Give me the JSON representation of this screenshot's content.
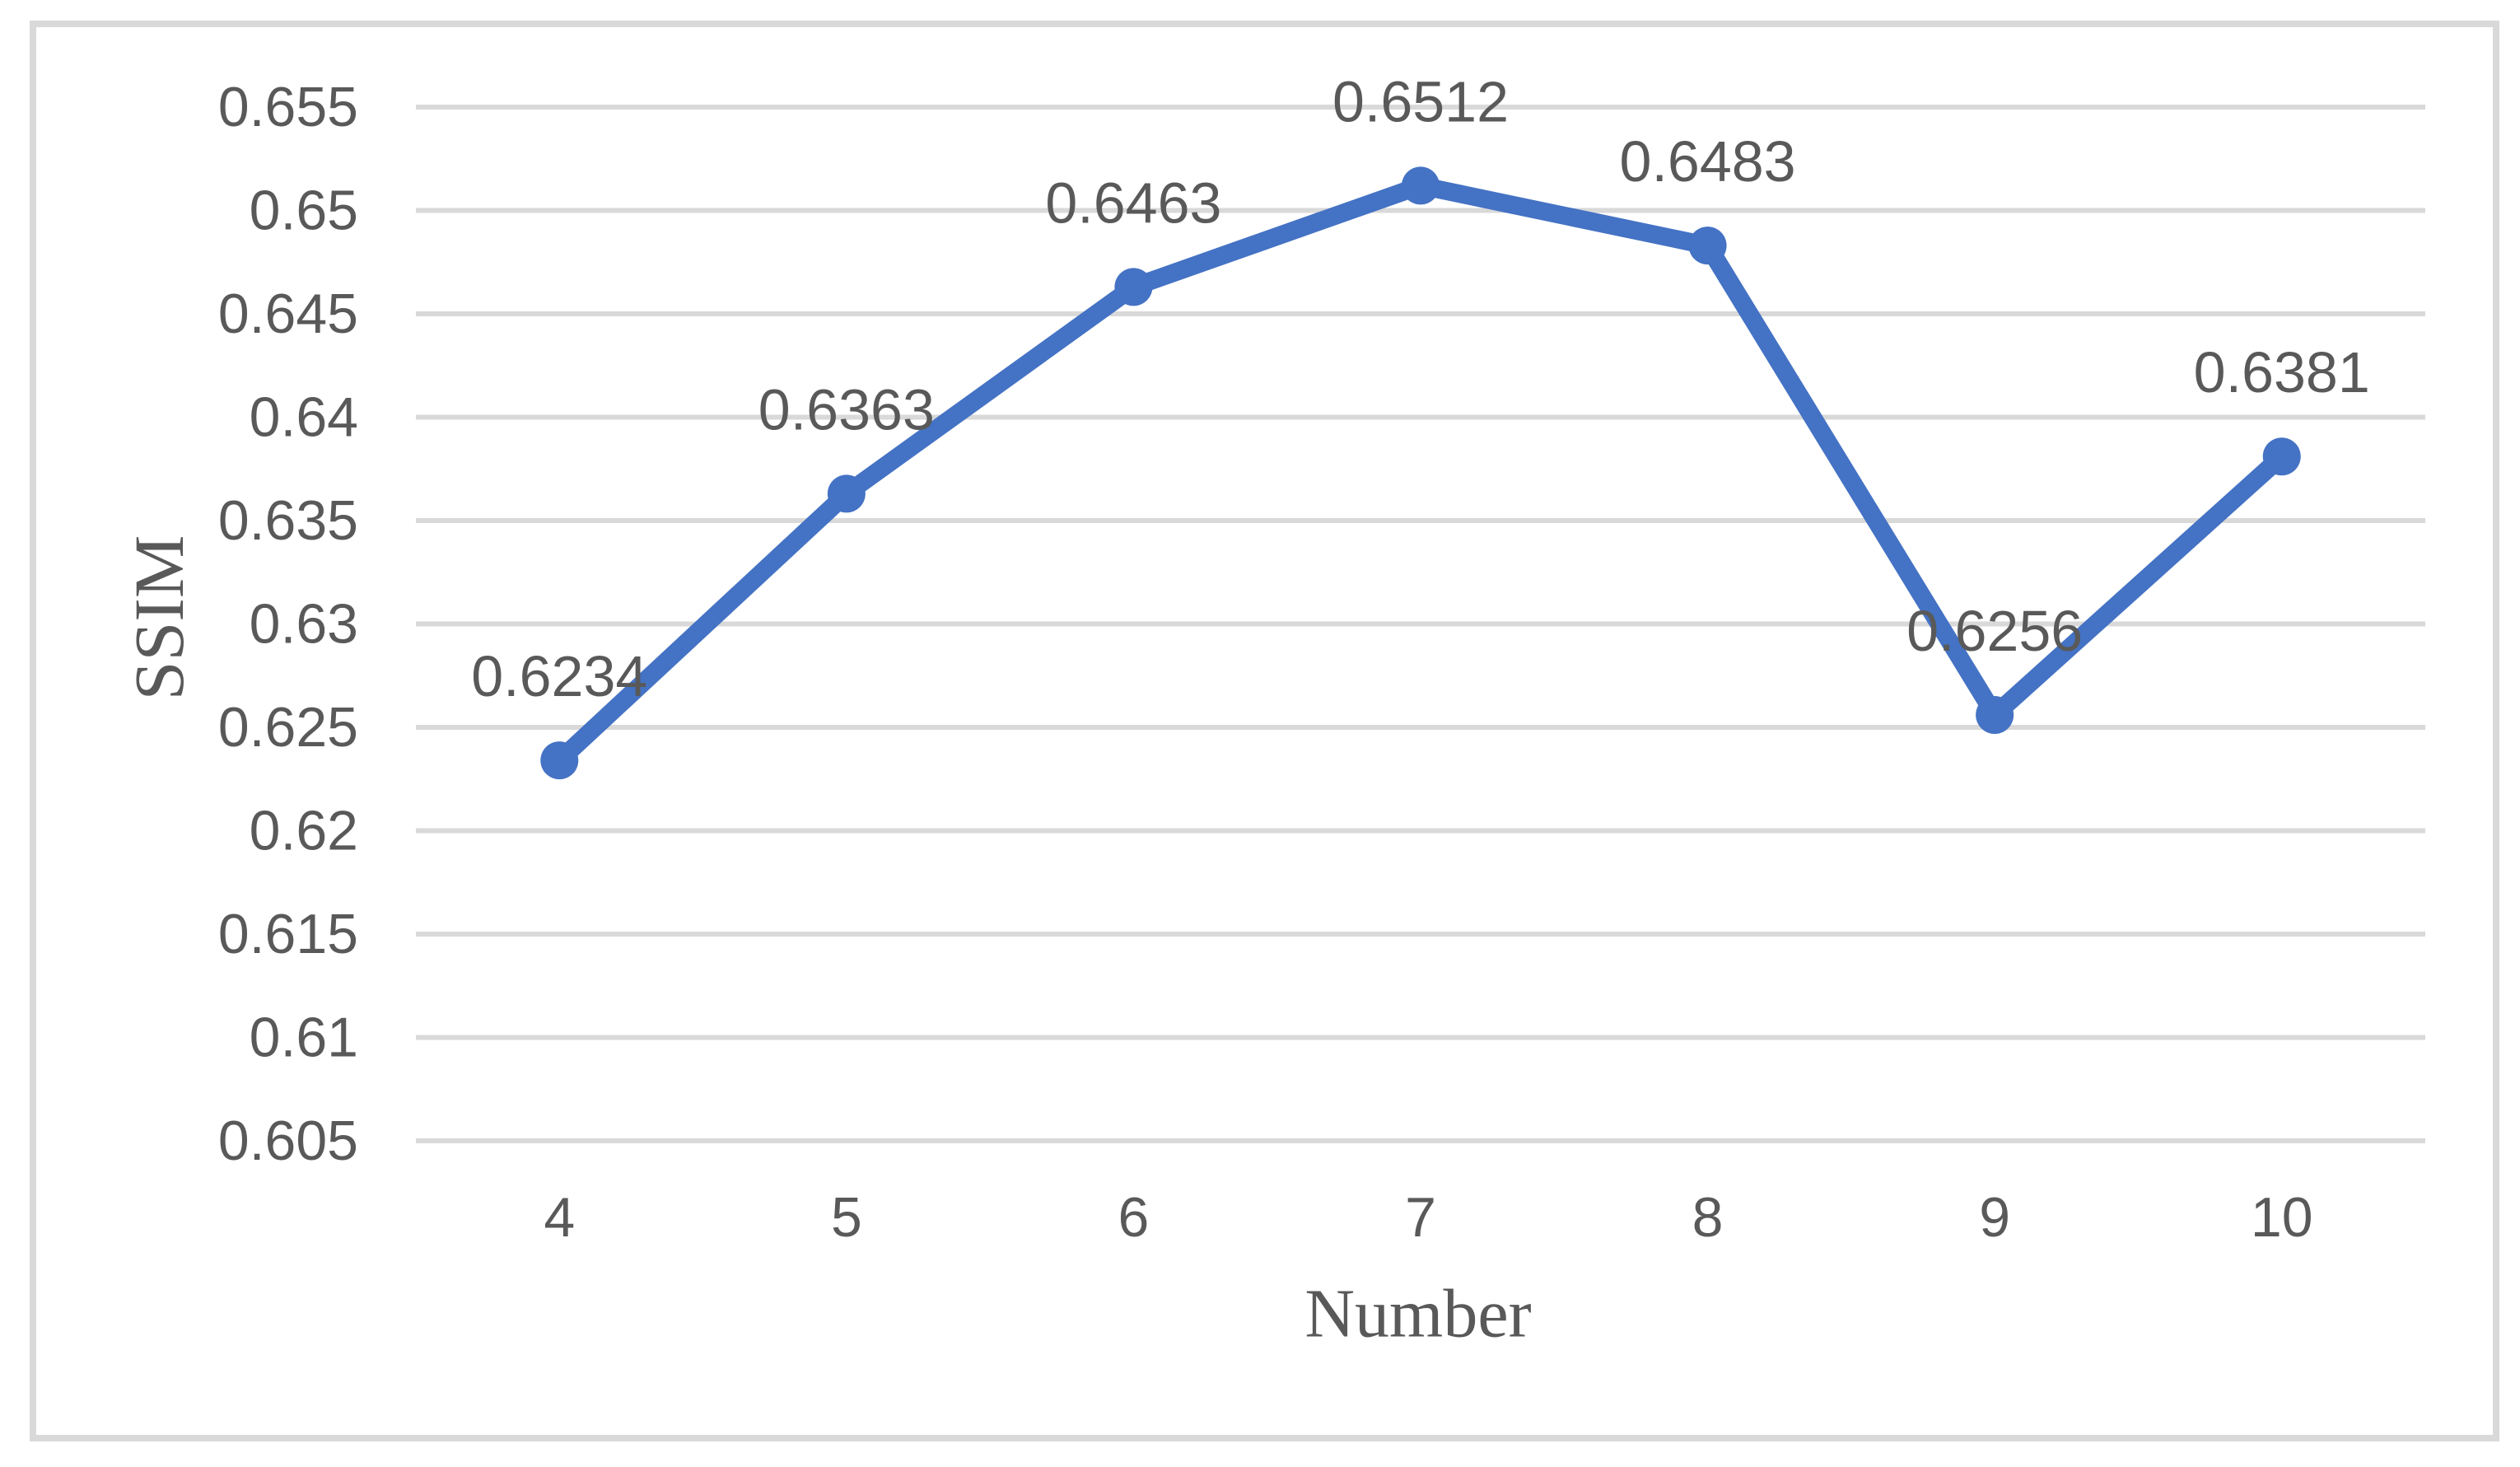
{
  "chart_data": {
    "type": "line",
    "title": "",
    "xlabel": "Number",
    "ylabel": "SSIM",
    "categories": [
      "4",
      "5",
      "6",
      "7",
      "8",
      "9",
      "10"
    ],
    "series": [
      {
        "name": "SSIM",
        "values": [
          0.6234,
          0.6363,
          0.6463,
          0.6512,
          0.6483,
          0.6256,
          0.6381
        ]
      }
    ],
    "data_labels": [
      "0.6234",
      "0.6363",
      "0.6463",
      "0.6512",
      "0.6483",
      "0.6256",
      "0.6381"
    ],
    "ylim": [
      0.605,
      0.655
    ],
    "ytick_step": 0.005,
    "yticks": [
      {
        "v": 0.605,
        "label": "0.605"
      },
      {
        "v": 0.61,
        "label": "0.61"
      },
      {
        "v": 0.615,
        "label": "0.615"
      },
      {
        "v": 0.62,
        "label": "0.62"
      },
      {
        "v": 0.625,
        "label": "0.625"
      },
      {
        "v": 0.63,
        "label": "0.63"
      },
      {
        "v": 0.635,
        "label": "0.635"
      },
      {
        "v": 0.64,
        "label": "0.64"
      },
      {
        "v": 0.645,
        "label": "0.645"
      },
      {
        "v": 0.65,
        "label": "0.65"
      },
      {
        "v": 0.655,
        "label": "0.655"
      }
    ],
    "grid": true,
    "legend_position": "none",
    "colors": {
      "line": "#4472C4",
      "marker": "#4472C4",
      "gridline": "#D9D9D9",
      "frame_border": "#D9D9D9",
      "text": "#595959",
      "background": "#FFFFFF"
    }
  }
}
